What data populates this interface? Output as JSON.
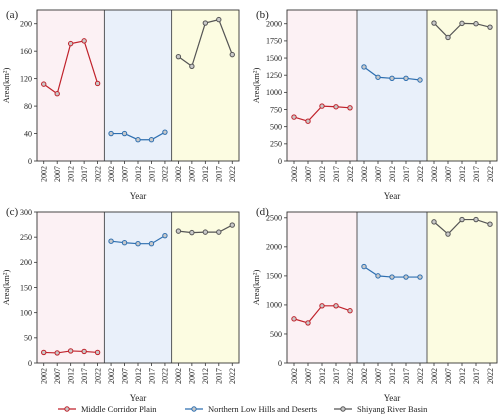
{
  "chart_data": [
    {
      "type": "line",
      "panel_label": "(a)",
      "xlabel": "Year",
      "ylabel": "Area(km²)",
      "ylim": [
        0,
        220
      ],
      "yticks": [
        0,
        40,
        80,
        120,
        160,
        200
      ],
      "categories": [
        "2002",
        "2007",
        "2012",
        "2017",
        "2022"
      ],
      "series": [
        {
          "name": "Middle Corridor Plain",
          "values": [
            112,
            98,
            171,
            175,
            113
          ]
        },
        {
          "name": "Northern Low Hills and Deserts",
          "values": [
            40,
            40,
            31,
            31,
            42
          ]
        },
        {
          "name": "Shiyang River Basin",
          "values": [
            152,
            138,
            201,
            206,
            155
          ]
        }
      ]
    },
    {
      "type": "line",
      "panel_label": "(b)",
      "xlabel": "Year",
      "ylabel": "Area(km²)",
      "ylim": [
        0,
        2200
      ],
      "yticks": [
        0,
        250,
        500,
        750,
        1000,
        1250,
        1500,
        1750,
        2000
      ],
      "categories": [
        "2002",
        "2007",
        "2012",
        "2017",
        "2022"
      ],
      "series": [
        {
          "name": "Middle Corridor Plain",
          "values": [
            640,
            580,
            800,
            790,
            775
          ]
        },
        {
          "name": "Northern Low Hills and Deserts",
          "values": [
            1370,
            1220,
            1205,
            1205,
            1180
          ]
        },
        {
          "name": "Shiyang River Basin",
          "values": [
            2010,
            1800,
            2005,
            2000,
            1950
          ]
        }
      ]
    },
    {
      "type": "line",
      "panel_label": "(c)",
      "xlabel": "Year",
      "ylabel": "Area(km²)",
      "ylim": [
        0,
        300
      ],
      "yticks": [
        0,
        50,
        100,
        150,
        200,
        250,
        300
      ],
      "categories": [
        "2002",
        "2007",
        "2012",
        "2017",
        "2022"
      ],
      "series": [
        {
          "name": "Middle Corridor Plain",
          "values": [
            21,
            20,
            24,
            23,
            21
          ]
        },
        {
          "name": "Northern Low Hills and Deserts",
          "values": [
            242,
            239,
            237,
            237,
            253
          ]
        },
        {
          "name": "Shiyang River Basin",
          "values": [
            262,
            259,
            260,
            260,
            274
          ]
        }
      ]
    },
    {
      "type": "line",
      "panel_label": "(d)",
      "xlabel": "Year",
      "ylabel": "Area(km²)",
      "ylim": [
        0,
        2600
      ],
      "yticks": [
        0,
        500,
        1000,
        1500,
        2000,
        2500
      ],
      "categories": [
        "2002",
        "2007",
        "2012",
        "2017",
        "2022"
      ],
      "series": [
        {
          "name": "Middle Corridor Plain",
          "values": [
            760,
            690,
            985,
            985,
            900
          ]
        },
        {
          "name": "Northern Low Hills and Deserts",
          "values": [
            1660,
            1500,
            1480,
            1480,
            1480
          ]
        },
        {
          "name": "Shiyang River Basin",
          "values": [
            2430,
            2220,
            2470,
            2470,
            2390
          ]
        }
      ]
    }
  ],
  "legend": {
    "items": [
      {
        "label": "Middle Corridor Plain",
        "color": "#c0222b"
      },
      {
        "label": "Northern Low Hills and Deserts",
        "color": "#2e6fb0"
      },
      {
        "label": "Shiyang River Basin",
        "color": "#555555"
      }
    ]
  },
  "colors": {
    "region_backgrounds": [
      "#fcf1f4",
      "#e9f0fa",
      "#fcfce1"
    ],
    "series": [
      "#c0222b",
      "#2e6fb0",
      "#555555"
    ]
  }
}
